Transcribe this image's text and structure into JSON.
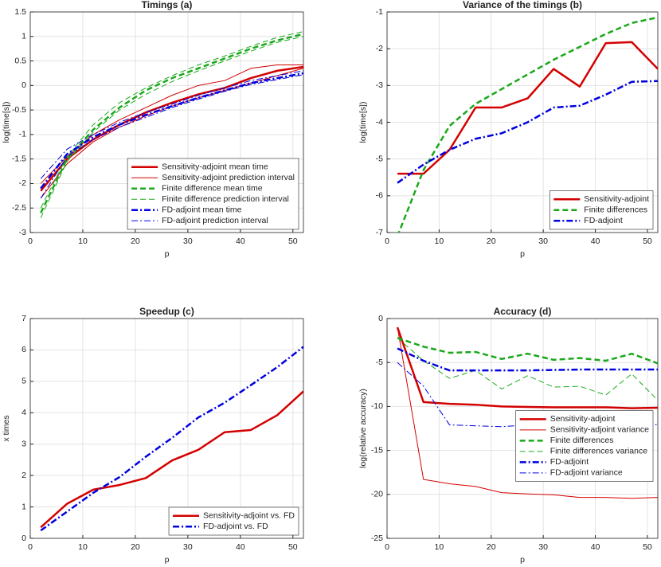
{
  "chart_data": [
    {
      "type": "line",
      "title": "Timings (a)",
      "xlabel": "p",
      "ylabel": "log(time[s])",
      "x": [
        2,
        7,
        12,
        17,
        22,
        27,
        32,
        37,
        42,
        47,
        52
      ],
      "xlim": [
        0,
        52
      ],
      "xticks": [
        0,
        10,
        20,
        30,
        40,
        50
      ],
      "ylim": [
        -3,
        1.5
      ],
      "yticks": [
        -3,
        -2.5,
        -2,
        -1.5,
        -1,
        -0.5,
        0,
        0.5,
        1,
        1.5
      ],
      "grid": true,
      "legend": "lower right",
      "series": [
        {
          "name": "Sensitivity-adjoint mean time",
          "color": "#d40000",
          "style": "solid",
          "linewidth": 2.5,
          "values": [
            -2.15,
            -1.5,
            -1.1,
            -0.8,
            -0.55,
            -0.35,
            -0.18,
            -0.05,
            0.15,
            0.3,
            0.38
          ]
        },
        {
          "name": "Sensitivity-adjoint prediction interval",
          "color": "#d40000",
          "style": "solid",
          "linewidth": 1,
          "upper": [
            -2.0,
            -1.45,
            -1.0,
            -0.7,
            -0.45,
            -0.2,
            0.0,
            0.1,
            0.35,
            0.42,
            0.42
          ],
          "lower": [
            -2.3,
            -1.6,
            -1.15,
            -0.85,
            -0.62,
            -0.42,
            -0.25,
            -0.1,
            0.05,
            0.2,
            0.35
          ]
        },
        {
          "name": "Finite difference mean time",
          "color": "#1aa81a",
          "style": "dashed",
          "linewidth": 2.5,
          "values": [
            -2.6,
            -1.5,
            -0.9,
            -0.45,
            -0.1,
            0.15,
            0.35,
            0.55,
            0.75,
            0.92,
            1.05
          ]
        },
        {
          "name": "Finite difference prediction interval",
          "color": "#1aa81a",
          "style": "dashed",
          "linewidth": 1,
          "upper": [
            -2.5,
            -1.45,
            -0.8,
            -0.35,
            -0.05,
            0.2,
            0.42,
            0.6,
            0.8,
            0.98,
            1.1
          ],
          "lower": [
            -2.7,
            -1.55,
            -0.95,
            -0.5,
            -0.18,
            0.08,
            0.3,
            0.5,
            0.7,
            0.88,
            1.0
          ]
        },
        {
          "name": "FD-adjoint mean time",
          "color": "#0000e0",
          "style": "dashdot",
          "linewidth": 2.5,
          "values": [
            -2.1,
            -1.4,
            -1.05,
            -0.8,
            -0.6,
            -0.42,
            -0.25,
            -0.1,
            0.05,
            0.15,
            0.25
          ]
        },
        {
          "name": "FD-adjoint prediction interval",
          "color": "#0000e0",
          "style": "dashdot",
          "linewidth": 1,
          "upper": [
            -1.9,
            -1.3,
            -1.0,
            -0.75,
            -0.55,
            -0.38,
            -0.2,
            -0.05,
            0.1,
            0.2,
            0.3
          ],
          "lower": [
            -2.3,
            -1.45,
            -1.1,
            -0.85,
            -0.65,
            -0.45,
            -0.28,
            -0.12,
            0.02,
            0.12,
            0.22
          ]
        }
      ]
    },
    {
      "type": "line",
      "title": "Variance of the timings (b)",
      "xlabel": "p",
      "ylabel": "log(time[s])",
      "x": [
        2,
        7,
        12,
        17,
        22,
        27,
        32,
        37,
        42,
        47,
        52
      ],
      "xlim": [
        0,
        52
      ],
      "xticks": [
        0,
        10,
        20,
        30,
        40,
        50
      ],
      "ylim": [
        -7,
        -1
      ],
      "yticks": [
        -7,
        -6,
        -5,
        -4,
        -3,
        -2,
        -1
      ],
      "grid": true,
      "legend": "lower right",
      "series": [
        {
          "name": "Sensitivity-adjoint",
          "color": "#d40000",
          "style": "solid",
          "linewidth": 2.5,
          "values": [
            -5.4,
            -5.4,
            -4.75,
            -3.6,
            -3.6,
            -3.35,
            -2.55,
            -3.03,
            -1.85,
            -1.82,
            -2.55
          ]
        },
        {
          "name": "Finite differences",
          "color": "#1aa81a",
          "style": "dashed",
          "linewidth": 2.5,
          "values": [
            -7.1,
            -5.3,
            -4.1,
            -3.5,
            -3.1,
            -2.7,
            -2.3,
            -1.95,
            -1.6,
            -1.3,
            -1.15
          ]
        },
        {
          "name": "FD-adjoint",
          "color": "#0000e0",
          "style": "dashdot",
          "linewidth": 2.5,
          "values": [
            -5.65,
            -5.15,
            -4.75,
            -4.45,
            -4.3,
            -4.0,
            -3.6,
            -3.55,
            -3.25,
            -2.9,
            -2.88
          ]
        }
      ]
    },
    {
      "type": "line",
      "title": "Speedup (c)",
      "xlabel": "p",
      "ylabel": "x times",
      "x": [
        2,
        7,
        12,
        17,
        22,
        27,
        32,
        37,
        42,
        47,
        52
      ],
      "xlim": [
        0,
        52
      ],
      "xticks": [
        0,
        10,
        20,
        30,
        40,
        50
      ],
      "ylim": [
        0,
        7
      ],
      "yticks": [
        0,
        1,
        2,
        3,
        4,
        5,
        6,
        7
      ],
      "grid": true,
      "legend": "lower right",
      "series": [
        {
          "name": "Sensitivity-adjoint vs. FD",
          "color": "#d40000",
          "style": "solid",
          "linewidth": 2.5,
          "values": [
            0.35,
            1.1,
            1.55,
            1.7,
            1.92,
            2.48,
            2.82,
            3.38,
            3.45,
            3.92,
            4.68
          ]
        },
        {
          "name": "FD-adjoint vs. FD",
          "color": "#0000e0",
          "style": "dashdot",
          "linewidth": 2.5,
          "values": [
            0.25,
            0.85,
            1.45,
            1.95,
            2.6,
            3.2,
            3.85,
            4.32,
            4.88,
            5.45,
            6.1
          ]
        }
      ]
    },
    {
      "type": "line",
      "title": "Accuracy (d)",
      "xlabel": "p",
      "ylabel": "log(relative accuracy)",
      "x": [
        2,
        7,
        12,
        17,
        22,
        27,
        32,
        37,
        42,
        47,
        52
      ],
      "xlim": [
        0,
        52
      ],
      "xticks": [
        0,
        10,
        20,
        30,
        40,
        50
      ],
      "ylim": [
        -25,
        0
      ],
      "yticks": [
        -25,
        -20,
        -15,
        -10,
        -5,
        0
      ],
      "grid": true,
      "legend": "right",
      "series": [
        {
          "name": "Sensitivity-adjoint",
          "color": "#d40000",
          "style": "solid",
          "linewidth": 2.5,
          "values": [
            -1,
            -9.5,
            -9.7,
            -9.8,
            -10,
            -10.05,
            -10.1,
            -10.1,
            -10.1,
            -10.2,
            -10.15
          ]
        },
        {
          "name": "Sensitivity-adjoint variance",
          "color": "#d40000",
          "style": "solid",
          "linewidth": 1,
          "values": [
            -1,
            -18.3,
            -18.8,
            -19.1,
            -19.8,
            -19.95,
            -20.05,
            -20.35,
            -20.35,
            -20.45,
            -20.35
          ]
        },
        {
          "name": "Finite differences",
          "color": "#1aa81a",
          "style": "dashed",
          "linewidth": 2.5,
          "values": [
            -2.2,
            -3.2,
            -3.9,
            -3.8,
            -4.6,
            -4.0,
            -4.7,
            -4.5,
            -4.8,
            -4.0,
            -5.1
          ]
        },
        {
          "name": "Finite differences variance",
          "color": "#1aa81a",
          "style": "dashed",
          "linewidth": 1,
          "values": [
            -2.2,
            -4.8,
            -6.8,
            -5.9,
            -8,
            -6.5,
            -7.8,
            -7.7,
            -8.7,
            -6.3,
            -9.3
          ]
        },
        {
          "name": "FD-adjoint",
          "color": "#0000e0",
          "style": "dashdot",
          "linewidth": 2.5,
          "values": [
            -3.4,
            -4.8,
            -5.9,
            -5.9,
            -5.9,
            -5.9,
            -5.85,
            -5.8,
            -5.8,
            -5.8,
            -5.8
          ]
        },
        {
          "name": "FD-adjoint variance",
          "color": "#0000e0",
          "style": "dashdot",
          "linewidth": 1,
          "values": [
            -5,
            -7.7,
            -12.1,
            -12.2,
            -12.3,
            -12.1,
            -12.3,
            -11.5,
            -11.9,
            -12.3,
            -12.05
          ]
        }
      ]
    }
  ]
}
